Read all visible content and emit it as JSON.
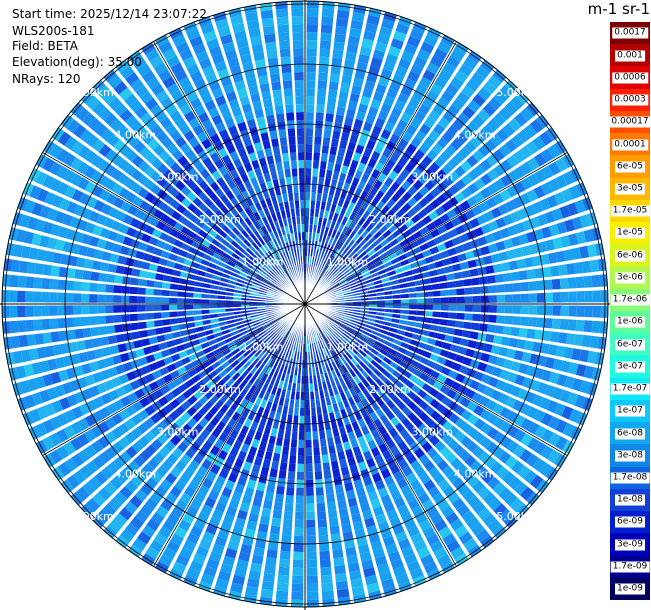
{
  "header": {
    "start_time": "Start time: 2025/12/14 23:07:22",
    "instrument": "WLS200s-181",
    "field": "Field: BETA",
    "elevation": "Elevation(deg): 35.00",
    "nrays": "NRays: 120"
  },
  "units_label": "m-1 sr-1",
  "chart_data": {
    "type": "heatmap",
    "projection": "polar-ppi",
    "field": "BETA",
    "elevation_deg": 35.0,
    "n_rays": 120,
    "range_rings_km": [
      1,
      2,
      3,
      4,
      5
    ],
    "range_ring_labels": [
      "1.00km",
      "2.00km",
      "3.00km",
      "4.00km",
      "5.00km"
    ],
    "colorbar": {
      "labels": [
        "0.0017",
        "0.001",
        "0.0006",
        "0.0003",
        "0.00017",
        "0.0001",
        "6e-05",
        "3e-05",
        "1.7e-05",
        "1e-05",
        "6e-06",
        "3e-06",
        "1.7e-06",
        "1e-06",
        "6e-07",
        "3e-07",
        "1.7e-07",
        "1e-07",
        "6e-08",
        "3e-08",
        "1.7e-08",
        "1e-08",
        "6e-09",
        "3e-09",
        "1.7e-09",
        "1e-09"
      ],
      "colors": [
        "#7f0000",
        "#b00000",
        "#e00000",
        "#ff2000",
        "#ff5000",
        "#ff7800",
        "#ff9c00",
        "#ffb800",
        "#ffd800",
        "#f6f000",
        "#d8f520",
        "#b0f850",
        "#88fa78",
        "#60fc98",
        "#40fcc0",
        "#20f8e0",
        "#10e8f8",
        "#10c8f8",
        "#10a8f0",
        "#1088e8",
        "#1064e0",
        "#1040d8",
        "#0020d0",
        "#0000b8",
        "#000090",
        "#000060"
      ]
    }
  }
}
